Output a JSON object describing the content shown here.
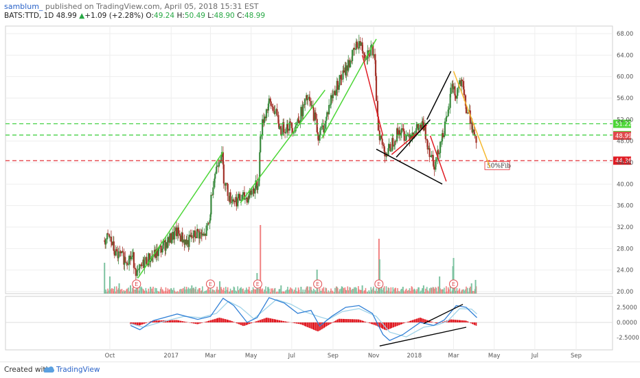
{
  "header": {
    "author": "samblum_",
    "published": " published on TradingView.com, April 05, 2018 15:31 EST",
    "symbol": "BATS:TTD, 1D",
    "last": "48.99",
    "change": "+1.09 (+2.28%)",
    "o_label": "O:",
    "o_val": "49.24",
    "h_label": "H:",
    "h_val": "50.49",
    "l_label": "L:",
    "l_val": "48.90",
    "c_label": "C:",
    "c_val": "48.99"
  },
  "footer": {
    "created": "Created with",
    "brand": "TradingView"
  },
  "colors": {
    "up": "#3a8a3e",
    "down": "#a3322a",
    "vol_up": "#7cc2a0",
    "vol_down": "#f08080",
    "green_line": "#4cd637",
    "red_line": "#e01c24",
    "orange_line": "#f5b82e",
    "macd_line": "#2f7fd6",
    "signal_line": "#9ed2e8",
    "hist": "#e01c24"
  },
  "chart_data": {
    "type": "candlestick",
    "x_labels": [
      "Oct",
      "2017",
      "Mar",
      "May",
      "Jul",
      "Sep",
      "Nov",
      "2018",
      "Mar",
      "May",
      "Jul",
      "Sep"
    ],
    "x_dates": [
      "2016-10-01",
      "2017-01-01",
      "2017-03-01",
      "2017-05-01",
      "2017-07-01",
      "2017-09-01",
      "2017-11-01",
      "2018-01-01",
      "2018-03-01",
      "2018-05-01",
      "2018-07-01",
      "2018-09-01"
    ],
    "price_ticks": [
      "68.00",
      "64.00",
      "60.00",
      "56.00",
      "52.00",
      "48.00",
      "44.00",
      "40.00",
      "36.00",
      "32.00",
      "28.00",
      "24.00",
      "20.00"
    ],
    "price_range": [
      20,
      69
    ],
    "price_series": [
      [
        "2016-09-23",
        29.5
      ],
      [
        "2016-10-01",
        30.0
      ],
      [
        "2016-10-10",
        27.0
      ],
      [
        "2016-10-25",
        26.0
      ],
      [
        "2016-11-05",
        26.5
      ],
      [
        "2016-11-12",
        23.0
      ],
      [
        "2016-11-22",
        25.5
      ],
      [
        "2016-12-10",
        27.0
      ],
      [
        "2016-12-25",
        29.0
      ],
      [
        "2017-01-10",
        31.0
      ],
      [
        "2017-01-25",
        29.0
      ],
      [
        "2017-02-10",
        31.0
      ],
      [
        "2017-02-20",
        30.0
      ],
      [
        "2017-02-28",
        33.0
      ],
      [
        "2017-03-05",
        40.0
      ],
      [
        "2017-03-12",
        44.0
      ],
      [
        "2017-03-18",
        46.0
      ],
      [
        "2017-03-22",
        41.0
      ],
      [
        "2017-03-30",
        37.5
      ],
      [
        "2017-04-10",
        37.0
      ],
      [
        "2017-04-25",
        37.5
      ],
      [
        "2017-05-05",
        39.0
      ],
      [
        "2017-05-12",
        40.0
      ],
      [
        "2017-05-16",
        49.0
      ],
      [
        "2017-05-20",
        52.0
      ],
      [
        "2017-05-28",
        55.0
      ],
      [
        "2017-06-05",
        54.0
      ],
      [
        "2017-06-15",
        50.0
      ],
      [
        "2017-06-25",
        51.0
      ],
      [
        "2017-07-05",
        50.5
      ],
      [
        "2017-07-15",
        53.0
      ],
      [
        "2017-07-25",
        56.0
      ],
      [
        "2017-08-01",
        54.0
      ],
      [
        "2017-08-05",
        52.5
      ],
      [
        "2017-08-10",
        49.0
      ],
      [
        "2017-08-20",
        51.0
      ],
      [
        "2017-08-30",
        56.0
      ],
      [
        "2017-09-10",
        59.0
      ],
      [
        "2017-09-20",
        61.0
      ],
      [
        "2017-10-01",
        64.0
      ],
      [
        "2017-10-10",
        66.5
      ],
      [
        "2017-10-20",
        64.0
      ],
      [
        "2017-10-30",
        65.5
      ],
      [
        "2017-11-03",
        62.0
      ],
      [
        "2017-11-09",
        50.0
      ],
      [
        "2017-11-15",
        47.0
      ],
      [
        "2017-11-22",
        45.5
      ],
      [
        "2017-11-30",
        48.0
      ],
      [
        "2017-12-10",
        50.0
      ],
      [
        "2017-12-20",
        49.0
      ],
      [
        "2018-01-05",
        50.0
      ],
      [
        "2018-01-15",
        51.0
      ],
      [
        "2018-01-25",
        46.0
      ],
      [
        "2018-02-02",
        43.5
      ],
      [
        "2018-02-10",
        48.0
      ],
      [
        "2018-02-20",
        52.0
      ],
      [
        "2018-02-27",
        59.0
      ],
      [
        "2018-03-05",
        56.0
      ],
      [
        "2018-03-10",
        59.0
      ],
      [
        "2018-03-15",
        58.0
      ],
      [
        "2018-03-20",
        54.0
      ],
      [
        "2018-03-28",
        52.0
      ],
      [
        "2018-04-02",
        47.5
      ],
      [
        "2018-04-05",
        48.99
      ]
    ],
    "volume_bars": [
      [
        "2016-09-23",
        0.45
      ],
      [
        "2016-10-01",
        0.25
      ],
      [
        "2016-10-15",
        0.15
      ],
      [
        "2016-11-01",
        0.12
      ],
      [
        "2016-11-10",
        0.18
      ],
      [
        "2016-12-01",
        0.1
      ],
      [
        "2017-01-01",
        0.08
      ],
      [
        "2017-02-01",
        0.12
      ],
      [
        "2017-03-01",
        0.2
      ],
      [
        "2017-03-15",
        0.18
      ],
      [
        "2017-04-15",
        0.08
      ],
      [
        "2017-05-10",
        0.3
      ],
      [
        "2017-05-15",
        1.0
      ],
      [
        "2017-06-15",
        0.12
      ],
      [
        "2017-07-15",
        0.1
      ],
      [
        "2017-08-08",
        0.35
      ],
      [
        "2017-09-15",
        0.1
      ],
      [
        "2017-10-15",
        0.12
      ],
      [
        "2017-11-09",
        0.8
      ],
      [
        "2017-11-10",
        0.5
      ],
      [
        "2017-12-15",
        0.1
      ],
      [
        "2018-01-15",
        0.12
      ],
      [
        "2018-02-08",
        0.25
      ],
      [
        "2018-02-28",
        0.4
      ],
      [
        "2018-03-01",
        0.52
      ],
      [
        "2018-03-28",
        0.15
      ],
      [
        "2018-04-03",
        0.2
      ]
    ],
    "earnings_markers": [
      "2016-11-10",
      "2017-03-01",
      "2017-05-11",
      "2017-08-09",
      "2017-11-09",
      "2018-03-01"
    ],
    "horizontal_levels": [
      {
        "price": 51.22,
        "label": "51.22",
        "color": "#33cc33",
        "label_bg": "#4cd637"
      },
      {
        "price": 49.12,
        "label": "49.12",
        "color": "#33cc33",
        "label_bg": "#4cd637"
      },
      {
        "price": 48.99,
        "label": "48.99",
        "color": "none",
        "label_bg": "#e0494c"
      },
      {
        "price": 44.36,
        "label": "44.36",
        "color": "#e01c24",
        "label_bg": "#e01c24"
      }
    ],
    "annotation": {
      "text": "50%Fib",
      "date": "2018-04-20",
      "price": 43.2
    },
    "trendlines": [
      {
        "color": "#4cd637",
        "from": [
          "2016-11-12",
          22.5
        ],
        "to": [
          "2017-03-20",
          46.0
        ]
      },
      {
        "color": "#4cd637",
        "from": [
          "2017-04-15",
          36.5
        ],
        "to": [
          "2017-08-20",
          57.5
        ]
      },
      {
        "color": "#4cd637",
        "from": [
          "2017-08-15",
          48.5
        ],
        "to": [
          "2017-11-05",
          67.0
        ]
      },
      {
        "color": "#e01c24",
        "from": [
          "2017-10-15",
          64.0
        ],
        "to": [
          "2017-11-15",
          49.0
        ]
      },
      {
        "color": "#e01c24",
        "from": [
          "2017-11-28",
          45.5
        ],
        "to": [
          "2018-01-20",
          51.0
        ]
      },
      {
        "color": "#e01c24",
        "from": [
          "2018-01-25",
          49.0
        ],
        "to": [
          "2018-02-18",
          40.5
        ]
      },
      {
        "color": "#000000",
        "from": [
          "2017-11-05",
          46.5
        ],
        "to": [
          "2018-02-12",
          40.0
        ]
      },
      {
        "color": "#000000",
        "from": [
          "2017-12-05",
          45.0
        ],
        "to": [
          "2018-01-25",
          52.0
        ]
      },
      {
        "color": "#000000",
        "from": [
          "2018-01-20",
          52.0
        ],
        "to": [
          "2018-02-25",
          61.0
        ]
      },
      {
        "color": "#f5b82e",
        "from": [
          "2018-03-01",
          61.0
        ],
        "to": [
          "2018-04-25",
          43.0
        ]
      }
    ],
    "macd_ticks": [
      "2.5000",
      "0.0000",
      "-2.5000"
    ],
    "macd_range": [
      -4.2,
      4.3
    ],
    "macd_line": [
      [
        "2016-11-01",
        -0.5
      ],
      [
        "2016-11-15",
        -1.2
      ],
      [
        "2016-12-05",
        0.3
      ],
      [
        "2017-01-10",
        1.4
      ],
      [
        "2017-02-10",
        0.5
      ],
      [
        "2017-03-01",
        1.0
      ],
      [
        "2017-03-20",
        4.0
      ],
      [
        "2017-04-05",
        2.8
      ],
      [
        "2017-04-25",
        0.0
      ],
      [
        "2017-05-10",
        0.8
      ],
      [
        "2017-05-28",
        4.1
      ],
      [
        "2017-06-20",
        3.2
      ],
      [
        "2017-07-10",
        1.5
      ],
      [
        "2017-07-30",
        2.0
      ],
      [
        "2017-08-12",
        -0.6
      ],
      [
        "2017-08-30",
        1.0
      ],
      [
        "2017-09-20",
        2.5
      ],
      [
        "2017-10-10",
        2.8
      ],
      [
        "2017-10-30",
        1.5
      ],
      [
        "2017-11-15",
        -2.0
      ],
      [
        "2017-11-25",
        -3.0
      ],
      [
        "2017-12-15",
        -2.0
      ],
      [
        "2018-01-10",
        0.0
      ],
      [
        "2018-01-30",
        -0.5
      ],
      [
        "2018-02-15",
        0.4
      ],
      [
        "2018-03-05",
        2.8
      ],
      [
        "2018-03-20",
        2.5
      ],
      [
        "2018-04-05",
        0.8
      ]
    ],
    "signal_line": [
      [
        "2016-11-01",
        -0.2
      ],
      [
        "2016-11-20",
        -0.8
      ],
      [
        "2016-12-15",
        0.0
      ],
      [
        "2017-01-20",
        1.0
      ],
      [
        "2017-02-15",
        0.8
      ],
      [
        "2017-03-10",
        1.5
      ],
      [
        "2017-03-28",
        3.5
      ],
      [
        "2017-04-15",
        2.5
      ],
      [
        "2017-05-05",
        0.6
      ],
      [
        "2017-05-20",
        2.0
      ],
      [
        "2017-06-08",
        3.8
      ],
      [
        "2017-06-30",
        3.0
      ],
      [
        "2017-07-20",
        1.8
      ],
      [
        "2017-08-10",
        1.0
      ],
      [
        "2017-08-25",
        0.5
      ],
      [
        "2017-09-15",
        1.8
      ],
      [
        "2017-10-10",
        2.3
      ],
      [
        "2017-11-05",
        1.0
      ],
      [
        "2017-11-25",
        -1.6
      ],
      [
        "2017-12-20",
        -2.4
      ],
      [
        "2018-01-15",
        -0.8
      ],
      [
        "2018-02-05",
        -0.4
      ],
      [
        "2018-02-20",
        0.2
      ],
      [
        "2018-03-10",
        2.3
      ],
      [
        "2018-03-28",
        2.2
      ],
      [
        "2018-04-05",
        1.4
      ]
    ],
    "macd_hist": [
      [
        "2016-11-01",
        -0.3
      ],
      [
        "2016-11-15",
        -0.5
      ],
      [
        "2016-12-05",
        0.3
      ],
      [
        "2017-01-10",
        0.4
      ],
      [
        "2017-02-10",
        -0.3
      ],
      [
        "2017-03-15",
        0.8
      ],
      [
        "2017-04-01",
        0.3
      ],
      [
        "2017-04-20",
        -0.6
      ],
      [
        "2017-05-25",
        0.8
      ],
      [
        "2017-06-20",
        0.2
      ],
      [
        "2017-07-15",
        -0.3
      ],
      [
        "2017-08-10",
        -1.5
      ],
      [
        "2017-09-10",
        0.6
      ],
      [
        "2017-10-10",
        0.5
      ],
      [
        "2017-11-05",
        -0.5
      ],
      [
        "2017-11-20",
        -1.3
      ],
      [
        "2017-12-20",
        0.0
      ],
      [
        "2018-01-10",
        0.8
      ],
      [
        "2018-02-05",
        -0.2
      ],
      [
        "2018-02-25",
        0.5
      ],
      [
        "2018-03-20",
        0.3
      ],
      [
        "2018-04-05",
        -0.6
      ]
    ],
    "macd_trendlines": [
      {
        "color": "#000000",
        "from": [
          "2017-11-10",
          -3.9
        ],
        "to": [
          "2018-03-20",
          -0.8
        ]
      },
      {
        "color": "#000000",
        "from": [
          "2018-01-15",
          -0.2
        ],
        "to": [
          "2018-03-15",
          3.0
        ]
      }
    ]
  }
}
